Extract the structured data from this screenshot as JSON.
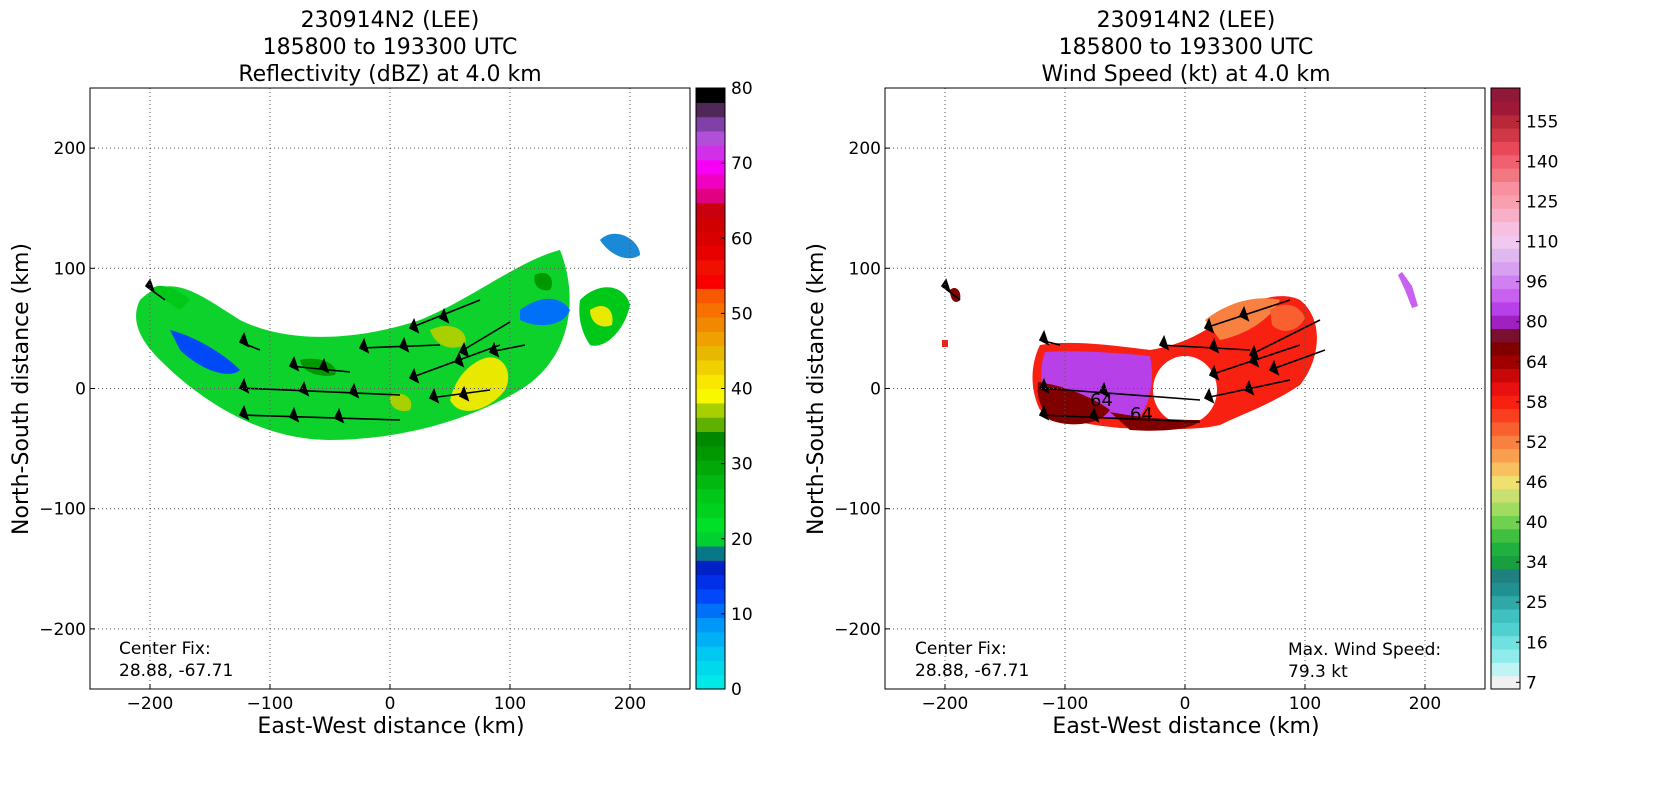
{
  "chart_data": [
    {
      "type": "heatmap",
      "title": [
        "230914N2 (LEE)",
        "185800 to 193300 UTC",
        "Reflectivity (dBZ) at 4.0 km"
      ],
      "xlabel": "East-West distance (km)",
      "ylabel": "North-South distance (km)",
      "xlim": [
        -250,
        250
      ],
      "ylim": [
        -250,
        250
      ],
      "xticks": [
        -200,
        -100,
        0,
        100,
        200
      ],
      "yticks": [
        -200,
        -100,
        0,
        100,
        200
      ],
      "grid": true,
      "annotation_left": [
        "Center Fix:",
        "28.88, -67.71"
      ],
      "colorbar": {
        "min": 0,
        "max": 80,
        "tick_labels": [
          "0",
          "10",
          "20",
          "30",
          "40",
          "50",
          "60",
          "70",
          "80"
        ],
        "tick_values": [
          0,
          10,
          20,
          30,
          40,
          50,
          60,
          70,
          80
        ],
        "colors": [
          "#00e8e8",
          "#00d8ec",
          "#00c8f0",
          "#00b0f4",
          "#0098f8",
          "#0070f8",
          "#0048f8",
          "#0030e8",
          "#0020c8",
          "#087888",
          "#00d030",
          "#00e028",
          "#00d020",
          "#00c818",
          "#00b810",
          "#00a808",
          "#009800",
          "#008800",
          "#60b000",
          "#a8d000",
          "#f8f800",
          "#f8e800",
          "#f0d000",
          "#e8b800",
          "#f0a000",
          "#f08800",
          "#f87000",
          "#f85800",
          "#f80000",
          "#f01000",
          "#e80000",
          "#d80000",
          "#d00000",
          "#c80010",
          "#e00080",
          "#f000c0",
          "#f800f8",
          "#d030e8",
          "#b050d8",
          "#8040a8",
          "#502858",
          "#000000"
        ]
      },
      "wind_barbs": true,
      "echo_region": "comma-shaped band from about (-200, 85) to (210, 115), wrapping south of center"
    },
    {
      "type": "heatmap",
      "title": [
        "230914N2 (LEE)",
        "185800 to 193300 UTC",
        "Wind Speed (kt) at 4.0 km"
      ],
      "xlabel": "East-West distance (km)",
      "ylabel": "North-South distance (km)",
      "xlim": [
        -250,
        250
      ],
      "ylim": [
        -250,
        250
      ],
      "xticks": [
        -200,
        -100,
        0,
        100,
        200
      ],
      "yticks": [
        -200,
        -100,
        0,
        100,
        200
      ],
      "grid": true,
      "annotation_left": [
        "Center Fix:",
        "28.88, -67.71"
      ],
      "annotation_right": [
        "Max. Wind Speed:",
        "79.3 kt"
      ],
      "contour_labels": [
        "64",
        "64"
      ],
      "colorbar": {
        "min": 7,
        "max": 160,
        "tick_labels": [
          "7",
          "16",
          "25",
          "34",
          "40",
          "46",
          "52",
          "58",
          "64",
          "80",
          "96",
          "110",
          "125",
          "140",
          "155"
        ],
        "colors": [
          "#f0f0f0",
          "#c0f4f4",
          "#90ecec",
          "#70e0e0",
          "#50d0d0",
          "#40c0c0",
          "#30a8a8",
          "#209090",
          "#208080",
          "#18a040",
          "#20b040",
          "#40c040",
          "#70d050",
          "#a0dc60",
          "#c8e070",
          "#f0e070",
          "#f8c060",
          "#f8a050",
          "#f88040",
          "#f86030",
          "#f84020",
          "#f82010",
          "#e81010",
          "#c80808",
          "#a00000",
          "#800000",
          "#7a1030",
          "#a020c0",
          "#b840e8",
          "#c860f0",
          "#d080f0",
          "#d8a0f0",
          "#e0b8f0",
          "#f0c8f0",
          "#f8c0e0",
          "#f8b0c8",
          "#f8a0b0",
          "#f890a0",
          "#f07880",
          "#f06070",
          "#e84858",
          "#d03848",
          "#b82838",
          "#a01838",
          "#901838"
        ]
      },
      "wind_barbs": true,
      "max_wind_kt": 79.3
    }
  ]
}
